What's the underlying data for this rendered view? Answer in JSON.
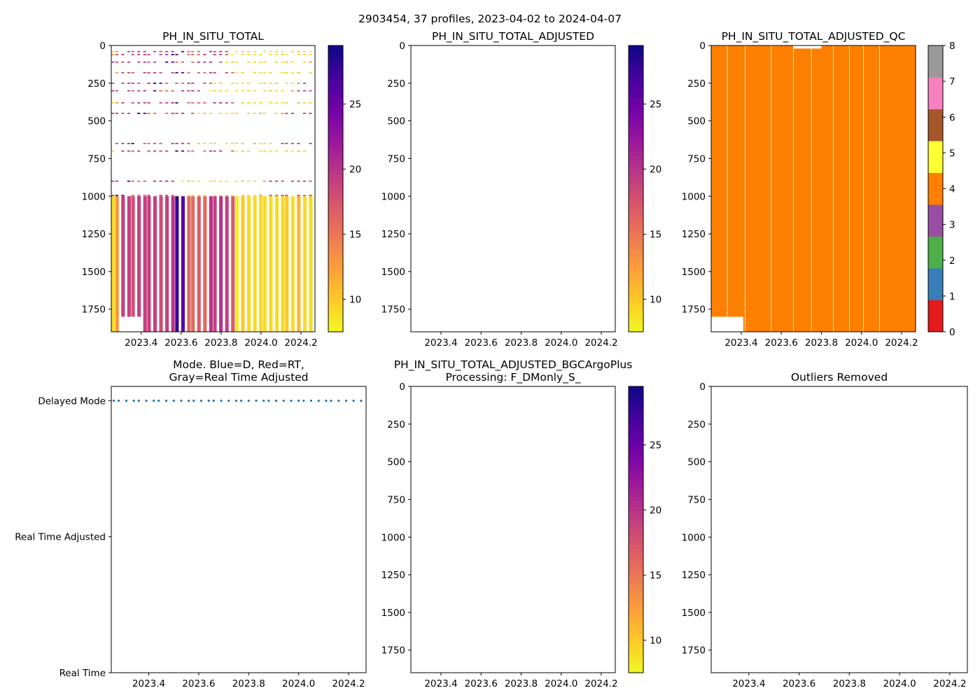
{
  "figure": {
    "suptitle": "2903454, 37 profiles, 2023-04-02 to 2024-04-07"
  },
  "colors": {
    "plasma": [
      "#f0f921",
      "#fdca26",
      "#fb9f3a",
      "#ed7953",
      "#d8576b",
      "#bd3786",
      "#9c179e",
      "#7201a8",
      "#46039f",
      "#0d0887"
    ],
    "qc": [
      "#e41a1c",
      "#377eb8",
      "#4daf4a",
      "#984ea3",
      "#ff7f00",
      "#ffff33",
      "#a65628",
      "#f781bf",
      "#999999"
    ],
    "mode_dots": "#1f77b4"
  },
  "chart_data": [
    {
      "id": "raw",
      "type": "heatmap",
      "title": "PH_IN_SITU_TOTAL",
      "xlim": [
        2023.25,
        2024.27
      ],
      "ylim": [
        1900,
        0
      ],
      "xticks": [
        "2023.4",
        "2023.6",
        "2023.8",
        "2024.0",
        "2024.2"
      ],
      "yticks": [
        "0",
        "250",
        "500",
        "750",
        "1000",
        "1250",
        "1500",
        "1750"
      ],
      "colorbar": {
        "range": [
          7.5,
          29.5
        ],
        "ticks": [
          "10",
          "15",
          "20",
          "25"
        ]
      },
      "deep_layer": {
        "top_dbar": 1000,
        "profile_x": [
          2023.26,
          2023.28,
          2023.31,
          2023.34,
          2023.36,
          2023.39,
          2023.42,
          2023.44,
          2023.47,
          2023.5,
          2023.53,
          2023.56,
          2023.58,
          2023.61,
          2023.64,
          2023.66,
          2023.69,
          2023.72,
          2023.75,
          2023.77,
          2023.8,
          2023.83,
          2023.86,
          2023.88,
          2023.91,
          2023.94,
          2023.97,
          2024.0,
          2024.02,
          2024.05,
          2024.08,
          2024.11,
          2024.13,
          2024.16,
          2024.19,
          2024.22,
          2024.25
        ],
        "values": [
          9,
          13,
          19,
          19,
          18,
          19,
          19,
          19,
          19,
          18,
          19,
          20,
          28,
          26,
          16,
          16,
          17,
          16,
          20,
          19,
          20,
          19,
          17,
          8,
          10,
          9,
          9,
          9,
          9,
          9,
          9,
          9,
          10,
          9,
          11,
          9,
          9
        ],
        "bottom_dbar": [
          1900,
          1900,
          1800,
          1800,
          1800,
          1800,
          1900,
          1900,
          1900,
          1900,
          1900,
          1900,
          1900,
          1900,
          1900,
          1900,
          1900,
          1900,
          1900,
          1900,
          1900,
          1900,
          1900,
          1900,
          1900,
          1900,
          1900,
          1900,
          1900,
          1900,
          1900,
          1900,
          1900,
          1900,
          1900,
          1900,
          1900
        ]
      },
      "sparse_levels_dbar": [
        40,
        60,
        110,
        180,
        250,
        300,
        380,
        450,
        650,
        700,
        900,
        995
      ]
    },
    {
      "id": "adjusted",
      "type": "heatmap",
      "title": "PH_IN_SITU_TOTAL_ADJUSTED",
      "xlim": [
        2023.25,
        2024.27
      ],
      "ylim": [
        1900,
        0
      ],
      "xticks": [
        "2023.4",
        "2023.6",
        "2023.8",
        "2024.0",
        "2024.2"
      ],
      "yticks": [
        "0",
        "250",
        "500",
        "750",
        "1000",
        "1250",
        "1500",
        "1750"
      ],
      "colorbar": {
        "range": [
          7.5,
          29.5
        ],
        "ticks": [
          "10",
          "15",
          "20",
          "25"
        ]
      },
      "values": []
    },
    {
      "id": "qc",
      "type": "heatmap",
      "title": "PH_IN_SITU_TOTAL_ADJUSTED_QC",
      "xlim": [
        2023.25,
        2024.27
      ],
      "ylim": [
        1900,
        0
      ],
      "xticks": [
        "2023.4",
        "2023.6",
        "2023.8",
        "2024.0",
        "2024.2"
      ],
      "yticks": [
        "0",
        "250",
        "500",
        "750",
        "1000",
        "1250",
        "1500",
        "1750"
      ],
      "colorbar": {
        "range": [
          0,
          8
        ],
        "ticks": [
          "0",
          "1",
          "2",
          "3",
          "4",
          "5",
          "6",
          "7",
          "8"
        ]
      },
      "qc_value": 4,
      "profile_boundaries_x": [
        2023.33,
        2023.42,
        2023.55,
        2023.66,
        2023.75,
        2023.86,
        2023.94,
        2024.01,
        2024.09
      ],
      "missing_bottom": {
        "x_range": [
          2023.25,
          2023.41
        ],
        "from_dbar": 1800
      },
      "missing_top": {
        "x_range": [
          2023.66,
          2023.8
        ],
        "to_dbar": 20
      }
    },
    {
      "id": "mode",
      "type": "scatter",
      "title": "Mode. Blue=D, Red=RT,\nGray=Real Time Adjusted",
      "xlim": [
        2023.25,
        2024.27
      ],
      "xticks": [
        "2023.4",
        "2023.6",
        "2023.8",
        "2024.0",
        "2024.2"
      ],
      "ycategories": [
        "Real Time",
        "Real Time Adjusted",
        "Delayed Mode"
      ],
      "series": [
        {
          "name": "D",
          "category": "Delayed Mode",
          "x": [
            2023.26,
            2023.28,
            2023.31,
            2023.34,
            2023.36,
            2023.39,
            2023.42,
            2023.44,
            2023.47,
            2023.5,
            2023.53,
            2023.56,
            2023.58,
            2023.61,
            2023.64,
            2023.66,
            2023.69,
            2023.72,
            2023.75,
            2023.77,
            2023.8,
            2023.83,
            2023.86,
            2023.88,
            2023.91,
            2023.94,
            2023.97,
            2024.0,
            2024.02,
            2024.05,
            2024.08,
            2024.11,
            2024.13,
            2024.16,
            2024.19,
            2024.22,
            2024.25
          ]
        }
      ]
    },
    {
      "id": "bgcargoplus",
      "type": "heatmap",
      "title": "PH_IN_SITU_TOTAL_ADJUSTED_BGCArgoPlus\nProcessing: F_DMonly_S_",
      "xlim": [
        2023.25,
        2024.27
      ],
      "ylim": [
        1900,
        0
      ],
      "xticks": [
        "2023.4",
        "2023.6",
        "2023.8",
        "2024.0",
        "2024.2"
      ],
      "yticks": [
        "0",
        "250",
        "500",
        "750",
        "1000",
        "1250",
        "1500",
        "1750"
      ],
      "colorbar": {
        "range": [
          7.5,
          29.5
        ],
        "ticks": [
          "10",
          "15",
          "20",
          "25"
        ]
      },
      "values": []
    },
    {
      "id": "outliers",
      "type": "scatter",
      "title": "Outliers Removed",
      "xlim": [
        2023.25,
        2024.27
      ],
      "ylim": [
        1900,
        0
      ],
      "xticks": [
        "2023.4",
        "2023.6",
        "2023.8",
        "2024.0",
        "2024.2"
      ],
      "yticks": [
        "0",
        "250",
        "500",
        "750",
        "1000",
        "1250",
        "1500",
        "1750"
      ],
      "values": []
    }
  ]
}
